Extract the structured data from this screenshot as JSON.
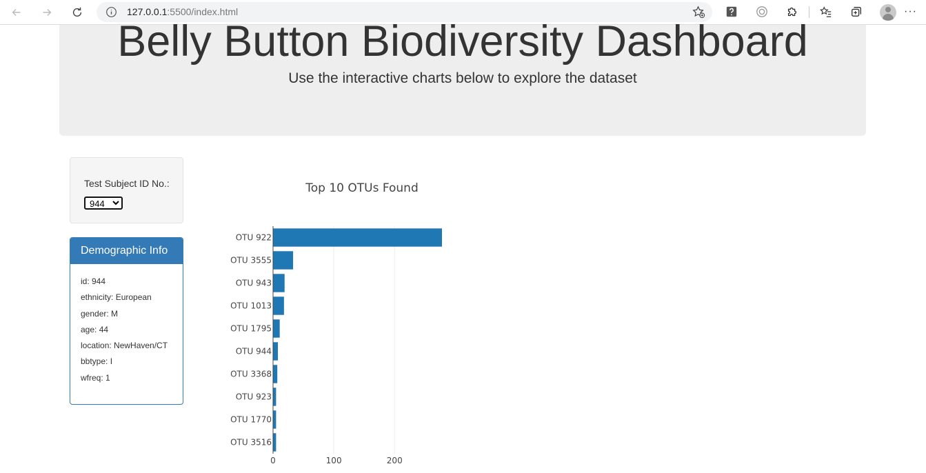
{
  "browser": {
    "url_host": "127.0.0.1",
    "url_rest": ":5500/index.html"
  },
  "jumbotron": {
    "title": "Belly Button Biodiversity Dashboard",
    "subtitle": "Use the interactive charts below to explore the dataset"
  },
  "selector": {
    "label": "Test Subject ID No.:",
    "selected": "944"
  },
  "demographics": {
    "heading": "Demographic Info",
    "rows": [
      "id: 944",
      "ethnicity: European",
      "gender: M",
      "age: 44",
      "location: NewHaven/CT",
      "bbtype: I",
      "wfreq: 1"
    ]
  },
  "colors": {
    "bar": "#1f77b4",
    "panel_primary": "#337ab7",
    "jumbotron_bg": "#eeeeee"
  },
  "chart_data": {
    "type": "bar",
    "orientation": "horizontal",
    "title": "Top 10 OTUs Found",
    "categories": [
      "OTU 922",
      "OTU 3555",
      "OTU 943",
      "OTU 1013",
      "OTU 1795",
      "OTU 944",
      "OTU 3368",
      "OTU 923",
      "OTU 1770",
      "OTU 3516"
    ],
    "values": [
      278,
      33,
      19,
      18,
      11,
      8,
      7,
      5,
      5,
      5
    ],
    "xlim": [
      0,
      278
    ],
    "xticks": [
      0,
      100,
      200
    ],
    "grid": true
  }
}
